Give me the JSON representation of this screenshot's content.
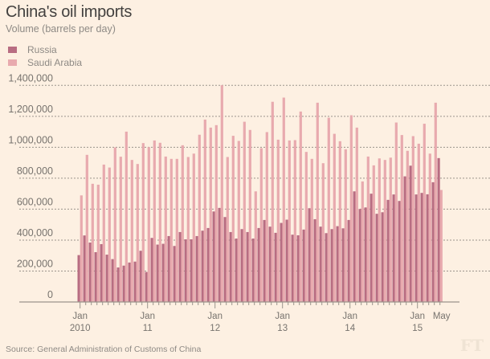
{
  "header": {
    "title": "China's oil imports",
    "subtitle": "Volume (barrels per day)"
  },
  "legend": [
    {
      "label": "Russia",
      "color": "#b86d82"
    },
    {
      "label": "Saudi Arabia",
      "color": "#e8aaae"
    }
  ],
  "footer": {
    "source": "Source: General Administration of Customs of China",
    "logo": "FT"
  },
  "chart_data": {
    "type": "bar",
    "title": "China's oil imports",
    "subtitle": "Volume (barrels per day)",
    "xlabel": "",
    "ylabel": "Volume (barrels per day)",
    "ylim": [
      0,
      1400000
    ],
    "yticks": [
      0,
      200000,
      400000,
      600000,
      800000,
      1000000,
      1200000,
      1400000
    ],
    "ytick_labels": [
      "0",
      "200,000",
      "400,000",
      "600,000",
      "800,000",
      "1,000,000",
      "1,200,000",
      "1,400,000"
    ],
    "grid": true,
    "legend_position": "top-left",
    "start": "2010-01",
    "x_tick_labels": [
      {
        "month_index": 0,
        "line1": "Jan",
        "line2": "2010"
      },
      {
        "month_index": 12,
        "line1": "Jan",
        "line2": "11"
      },
      {
        "month_index": 24,
        "line1": "Jan",
        "line2": "12"
      },
      {
        "month_index": 36,
        "line1": "Jan",
        "line2": "13"
      },
      {
        "month_index": 48,
        "line1": "Jan",
        "line2": "14"
      },
      {
        "month_index": 60,
        "line1": "Jan",
        "line2": "15"
      },
      {
        "month_index": 64,
        "line1": "May",
        "line2": ""
      }
    ],
    "categories": [
      "2010-01",
      "2010-02",
      "2010-03",
      "2010-04",
      "2010-05",
      "2010-06",
      "2010-07",
      "2010-08",
      "2010-09",
      "2010-10",
      "2010-11",
      "2010-12",
      "2011-01",
      "2011-02",
      "2011-03",
      "2011-04",
      "2011-05",
      "2011-06",
      "2011-07",
      "2011-08",
      "2011-09",
      "2011-10",
      "2011-11",
      "2011-12",
      "2012-01",
      "2012-02",
      "2012-03",
      "2012-04",
      "2012-05",
      "2012-06",
      "2012-07",
      "2012-08",
      "2012-09",
      "2012-10",
      "2012-11",
      "2012-12",
      "2013-01",
      "2013-02",
      "2013-03",
      "2013-04",
      "2013-05",
      "2013-06",
      "2013-07",
      "2013-08",
      "2013-09",
      "2013-10",
      "2013-11",
      "2013-12",
      "2014-01",
      "2014-02",
      "2014-03",
      "2014-04",
      "2014-05",
      "2014-06",
      "2014-07",
      "2014-08",
      "2014-09",
      "2014-10",
      "2014-11",
      "2014-12",
      "2015-01",
      "2015-02",
      "2015-03",
      "2015-04",
      "2015-05"
    ],
    "series": [
      {
        "name": "Russia",
        "color": "#b86d82",
        "values": [
          303000,
          430000,
          384000,
          322000,
          374000,
          306000,
          277000,
          223000,
          235000,
          255000,
          261000,
          331000,
          194000,
          414000,
          371000,
          376000,
          426000,
          362000,
          452000,
          405000,
          405000,
          426000,
          461000,
          478000,
          585000,
          608000,
          549000,
          452000,
          410000,
          471000,
          452000,
          410000,
          478000,
          530000,
          487000,
          447000,
          511000,
          532000,
          435000,
          431000,
          468000,
          606000,
          535000,
          487000,
          445000,
          471000,
          490000,
          476000,
          530000,
          715000,
          601000,
          611000,
          700000,
          570000,
          580000,
          660000,
          695000,
          653000,
          812000,
          881000,
          695000,
          705000,
          696000,
          774000,
          930000
        ]
      },
      {
        "name": "Saudi Arabia",
        "color": "#e8aaae",
        "values": [
          689000,
          951000,
          764000,
          758000,
          888000,
          869000,
          999000,
          939000,
          1101000,
          918000,
          892000,
          1027000,
          1001000,
          1044000,
          1029000,
          940000,
          925000,
          925000,
          1013000,
          937000,
          959000,
          1081000,
          1179000,
          1127000,
          1143000,
          1401000,
          937000,
          1074000,
          1041000,
          1165000,
          1112000,
          715000,
          994000,
          1098000,
          1294000,
          1049000,
          1321000,
          1044000,
          1046000,
          1231000,
          970000,
          925000,
          1288000,
          897000,
          1191000,
          1087000,
          1039000,
          987000,
          1207000,
          1127000,
          779000,
          940000,
          883000,
          928000,
          918000,
          933000,
          1160000,
          1079000,
          977000,
          1072000,
          1023000,
          1152000,
          959000,
          1288000,
          724000
        ]
      }
    ]
  }
}
